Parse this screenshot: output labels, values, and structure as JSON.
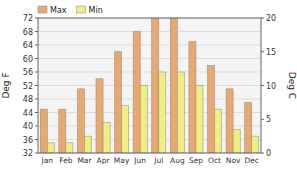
{
  "chart_data": {
    "type": "bar",
    "categories": [
      "Jan",
      "Feb",
      "Mar",
      "Apr",
      "May",
      "Jun",
      "Jul",
      "Aug",
      "Sep",
      "Oct",
      "Nov",
      "Dec"
    ],
    "series": [
      {
        "name": "Max",
        "color": "#E8A870",
        "values": [
          45,
          45,
          51,
          54,
          62,
          68,
          72,
          72,
          65,
          58,
          51,
          47
        ]
      },
      {
        "name": "Min",
        "color": "#F0EE80",
        "values": [
          35,
          35,
          37,
          41,
          46,
          52,
          56,
          56,
          52,
          45,
          39,
          37
        ]
      }
    ],
    "ylabel": "Deg F",
    "y2label": "Deg C",
    "ylim": [
      32,
      72
    ],
    "yticks": [
      32,
      36,
      40,
      44,
      48,
      52,
      56,
      60,
      64,
      68,
      72
    ],
    "y2lim": [
      0,
      20
    ],
    "y2ticks": [
      0,
      5,
      10,
      15,
      20
    ],
    "grid": true,
    "legend": "upper left"
  }
}
